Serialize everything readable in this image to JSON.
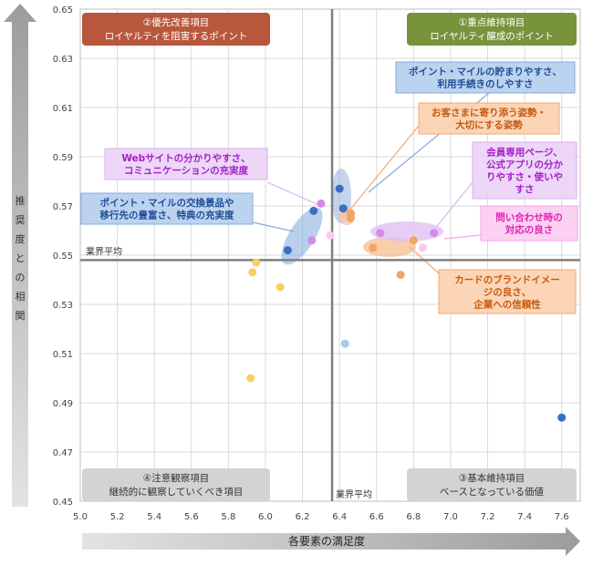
{
  "chart_data": {
    "type": "scatter",
    "xlabel": "各要素の満足度",
    "ylabel": "推奨度との相関",
    "xlim": [
      5.0,
      7.7
    ],
    "ylim": [
      0.45,
      0.65
    ],
    "xticks": [
      "5.0",
      "5.2",
      "5.4",
      "5.6",
      "5.8",
      "6.0",
      "6.2",
      "6.4",
      "6.6",
      "6.8",
      "7.0",
      "7.2",
      "7.4",
      "7.6"
    ],
    "yticks": [
      "0.45",
      "0.47",
      "0.49",
      "0.51",
      "0.53",
      "0.55",
      "0.57",
      "0.59",
      "0.61",
      "0.63",
      "0.65"
    ],
    "grid": true,
    "avg": {
      "x": 6.36,
      "y": 0.548,
      "label": "業界平均"
    },
    "quadrants": [
      {
        "line1": "①重点維持項目",
        "line2": "ロイヤルティ醸成のポイント",
        "color": "#77933c"
      },
      {
        "line1": "②優先改善項目",
        "line2": "ロイヤルティを阻害するポイント",
        "color": "#b8573b"
      },
      {
        "line1": "③基本維持項目",
        "line2": "ベースとなっている価値",
        "color": "#d3d3d3"
      },
      {
        "line1": "④注意観察項目",
        "line2": "継続的に観察していくべき項目",
        "color": "#d3d3d3"
      }
    ],
    "points": [
      {
        "x": 6.12,
        "y": 0.552,
        "color": "#3a6fc0"
      },
      {
        "x": 6.26,
        "y": 0.568,
        "color": "#3a6fc0"
      },
      {
        "x": 6.4,
        "y": 0.577,
        "color": "#3a6fc0"
      },
      {
        "x": 6.42,
        "y": 0.569,
        "color": "#3a6fc0"
      },
      {
        "x": 7.6,
        "y": 0.484,
        "color": "#3a6fc0"
      },
      {
        "x": 6.43,
        "y": 0.514,
        "color": "#a9c8ee"
      },
      {
        "x": 6.46,
        "y": 0.567,
        "color": "#f4a462"
      },
      {
        "x": 6.46,
        "y": 0.565,
        "color": "#f4a462"
      },
      {
        "x": 6.58,
        "y": 0.553,
        "color": "#f4a462"
      },
      {
        "x": 6.8,
        "y": 0.556,
        "color": "#f4a462"
      },
      {
        "x": 6.73,
        "y": 0.542,
        "color": "#f4a462"
      },
      {
        "x": 6.3,
        "y": 0.571,
        "color": "#d48ae8"
      },
      {
        "x": 6.25,
        "y": 0.556,
        "color": "#d48ae8"
      },
      {
        "x": 6.62,
        "y": 0.559,
        "color": "#d48ae8"
      },
      {
        "x": 6.91,
        "y": 0.559,
        "color": "#d48ae8"
      },
      {
        "x": 6.35,
        "y": 0.558,
        "color": "#f8c8f0"
      },
      {
        "x": 6.85,
        "y": 0.553,
        "color": "#f8c8f0"
      },
      {
        "x": 5.95,
        "y": 0.547,
        "color": "#f7cf64"
      },
      {
        "x": 5.93,
        "y": 0.543,
        "color": "#f7cf64"
      },
      {
        "x": 6.08,
        "y": 0.537,
        "color": "#f7cf64"
      },
      {
        "x": 5.92,
        "y": 0.5,
        "color": "#f7cf64"
      }
    ],
    "annotations": [
      {
        "lines": [
          "ポイント・マイルの貯まりやすさ、",
          "利用手続きのしやすさ"
        ],
        "bg": "#b6cfee",
        "border": "#86a9db",
        "fg": "#1f4e96"
      },
      {
        "lines": [
          "お客さまに寄り添う姿勢・",
          "大切にする姿勢"
        ],
        "bg": "#fbd1b0",
        "border": "#f0a877",
        "fg": "#c55a11"
      },
      {
        "lines": [
          "Webサイトの分かりやすさ、",
          "コミュニケーションの充実度"
        ],
        "bg": "#ecd3f7",
        "border": "#d9b2ec",
        "fg": "#a321c5"
      },
      {
        "lines": [
          "会員専用ページ、",
          "公式アプリの分か",
          "りやすさ・使いや",
          "すさ"
        ],
        "bg": "#ecd3f7",
        "border": "#d9b2ec",
        "fg": "#a321c5"
      },
      {
        "lines": [
          "ポイント・マイルの交換景品や",
          "移行先の豊富さ、特典の充実度"
        ],
        "bg": "#b6cfee",
        "border": "#86a9db",
        "fg": "#1f4e96"
      },
      {
        "lines": [
          "問い合わせ時の",
          "対応の良さ"
        ],
        "bg": "#fccdf1",
        "border": "#f2a5e2",
        "fg": "#e024b4"
      },
      {
        "lines": [
          "カードのブランドイメー",
          "ジの良さ、",
          "企業への信頼性"
        ],
        "bg": "#fbd1b0",
        "border": "#f0a877",
        "fg": "#c55a11"
      }
    ]
  }
}
